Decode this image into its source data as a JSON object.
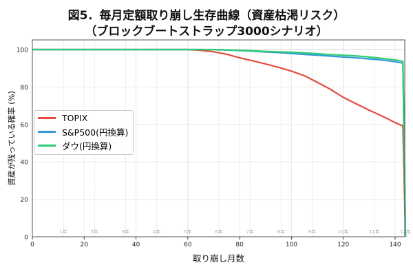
{
  "title_line1": "図5．毎月定額取り崩し生存曲線（資産枯渇リスク）",
  "title_line2": "（ブロックブートストラップ3000シナリオ）",
  "chart_data": {
    "type": "line",
    "xlabel": "取り崩し月数",
    "ylabel": "資産が残っている確率 (%)",
    "xlim": [
      0,
      144
    ],
    "ylim": [
      0,
      105
    ],
    "xticks": [
      0,
      20,
      40,
      60,
      80,
      100,
      120,
      140
    ],
    "yticks": [
      0,
      20,
      40,
      60,
      80,
      100
    ],
    "year_marks": [
      {
        "x": 12,
        "label": "1年"
      },
      {
        "x": 24,
        "label": "2年"
      },
      {
        "x": 36,
        "label": "3年"
      },
      {
        "x": 48,
        "label": "4年"
      },
      {
        "x": 60,
        "label": "5年"
      },
      {
        "x": 72,
        "label": "6年"
      },
      {
        "x": 84,
        "label": "7年"
      },
      {
        "x": 96,
        "label": "8年"
      },
      {
        "x": 108,
        "label": "9年"
      },
      {
        "x": 120,
        "label": "10年"
      },
      {
        "x": 132,
        "label": "11年"
      },
      {
        "x": 144,
        "label": "12年"
      }
    ],
    "grid": true,
    "legend_position": "center-left",
    "x": [
      0,
      60,
      65,
      70,
      75,
      80,
      85,
      90,
      95,
      100,
      105,
      110,
      115,
      120,
      125,
      130,
      135,
      140,
      143,
      144
    ],
    "series": [
      {
        "name": "TOPIX",
        "color": "#e74c3c",
        "values": [
          100,
          100,
          99.6,
          98.8,
          97.5,
          95.6,
          94,
          92.3,
          90.5,
          88.5,
          86,
          82.5,
          78.8,
          74.5,
          71,
          67.6,
          64.5,
          61,
          59.2,
          0
        ]
      },
      {
        "name": "S&P500(円換算)",
        "color": "#3498db",
        "values": [
          100,
          100,
          100,
          99.9,
          99.7,
          99.5,
          99.1,
          98.7,
          98.4,
          97.9,
          97.4,
          97,
          96.5,
          96,
          95.6,
          95,
          94.4,
          93.5,
          92.8,
          0
        ]
      },
      {
        "name": "ダウ(円換算)",
        "color": "#2ecc71",
        "values": [
          100,
          100,
          100,
          100,
          99.8,
          99.6,
          99.3,
          99,
          98.8,
          98.6,
          98.2,
          97.8,
          97.3,
          97,
          96.6,
          96,
          95.3,
          94.5,
          93.8,
          0
        ]
      }
    ]
  }
}
